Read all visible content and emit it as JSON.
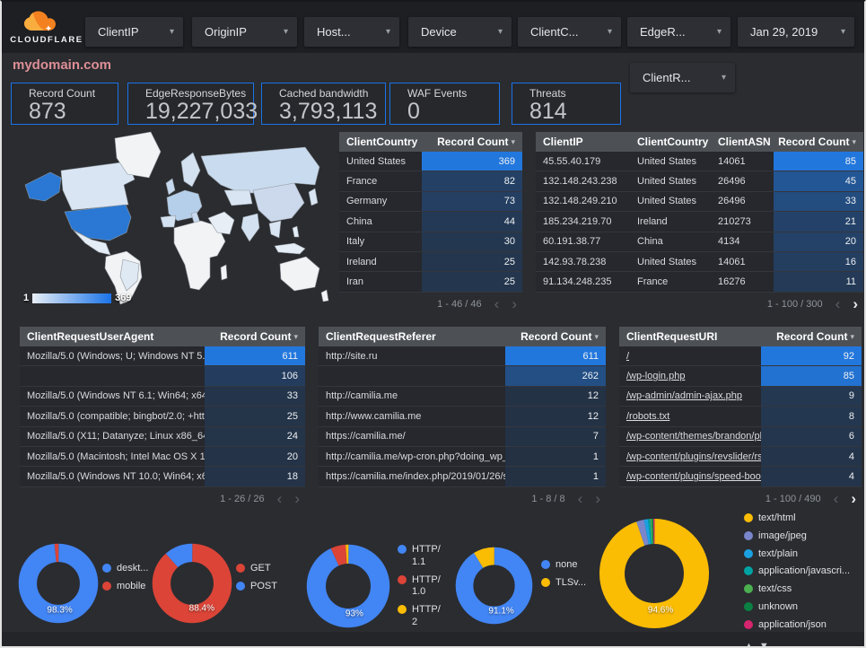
{
  "icons": {
    "caret_down": "▾",
    "chevron_left": "‹",
    "chevron_right": "›",
    "triangle_up": "▲",
    "triangle_down": "▼"
  },
  "colors": {
    "accent_blue": "#1a73e8",
    "bar_blue": "#2277dd",
    "bar_base": "#243143",
    "donut_blue": "#4285f4",
    "donut_red": "#db4437",
    "donut_yellow": "#fbbc04"
  },
  "header": {
    "logo_brand": "CLOUDFLARE",
    "filters": [
      {
        "label": "ClientIP"
      },
      {
        "label": "OriginIP"
      },
      {
        "label": "Host..."
      },
      {
        "label": "Device"
      },
      {
        "label": "ClientC..."
      },
      {
        "label": "EdgeR..."
      }
    ],
    "date_filter": {
      "label": "Jan 29, 2019"
    },
    "secondary_filter": {
      "label": "ClientR..."
    }
  },
  "page_title": "mydomain.com",
  "scorecards": [
    {
      "label": "Record Count",
      "value": "873"
    },
    {
      "label": "EdgeResponseBytes",
      "value": "19,227,033"
    },
    {
      "label": "Cached bandwidth",
      "value": "3,793,113"
    },
    {
      "label": "WAF Events",
      "value": "0"
    },
    {
      "label": "Threats",
      "value": "814"
    }
  ],
  "map": {
    "legend_min": "1",
    "legend_max": "369"
  },
  "tables": {
    "client_country": {
      "columns": [
        "ClientCountry",
        "Record Count"
      ],
      "max": 369,
      "rows": [
        {
          "cells": [
            "United States"
          ],
          "value": 369
        },
        {
          "cells": [
            "France"
          ],
          "value": 82
        },
        {
          "cells": [
            "Germany"
          ],
          "value": 73
        },
        {
          "cells": [
            "China"
          ],
          "value": 44
        },
        {
          "cells": [
            "Italy"
          ],
          "value": 30
        },
        {
          "cells": [
            "Ireland"
          ],
          "value": 25
        },
        {
          "cells": [
            "Iran"
          ],
          "value": 25
        }
      ],
      "pagination": {
        "range": "1 - 46 / 46",
        "prev": false,
        "next": false
      }
    },
    "client_ip": {
      "columns": [
        "ClientIP",
        "ClientCountry",
        "ClientASN",
        "Record Count"
      ],
      "max": 85,
      "rows": [
        {
          "cells": [
            "45.55.40.179",
            "United States",
            "14061"
          ],
          "value": 85
        },
        {
          "cells": [
            "132.148.243.238",
            "United States",
            "26496"
          ],
          "value": 45
        },
        {
          "cells": [
            "132.148.249.210",
            "United States",
            "26496"
          ],
          "value": 33
        },
        {
          "cells": [
            "185.234.219.70",
            "Ireland",
            "210273"
          ],
          "value": 21
        },
        {
          "cells": [
            "60.191.38.77",
            "China",
            "4134"
          ],
          "value": 20
        },
        {
          "cells": [
            "142.93.78.238",
            "United States",
            "14061"
          ],
          "value": 16
        },
        {
          "cells": [
            "91.134.248.235",
            "France",
            "16276"
          ],
          "value": 11
        }
      ],
      "pagination": {
        "range": "1 - 100 / 300",
        "prev": false,
        "next": true
      }
    },
    "user_agent": {
      "columns": [
        "ClientRequestUserAgent",
        "Record Count"
      ],
      "max": 611,
      "rows": [
        {
          "cells": [
            "Mozilla/5.0 (Windows; U; Windows NT 5.1; en-U..."
          ],
          "value": 611
        },
        {
          "cells": [
            ""
          ],
          "value": 106
        },
        {
          "cells": [
            "Mozilla/5.0 (Windows NT 6.1; Win64; x64; rv:64...."
          ],
          "value": 33
        },
        {
          "cells": [
            "Mozilla/5.0 (compatible; bingbot/2.0; +http://w..."
          ],
          "value": 25
        },
        {
          "cells": [
            "Mozilla/5.0 (X11; Datanyze; Linux x86_64) Appl..."
          ],
          "value": 24
        },
        {
          "cells": [
            "Mozilla/5.0 (Macintosh; Intel Mac OS X 10.11; r..."
          ],
          "value": 20
        },
        {
          "cells": [
            "Mozilla/5.0 (Windows NT 10.0; Win64; x64) App..."
          ],
          "value": 18
        }
      ],
      "pagination": {
        "range": "1 - 26 / 26",
        "prev": false,
        "next": false
      }
    },
    "referer": {
      "columns": [
        "ClientRequestReferer",
        "Record Count"
      ],
      "max": 611,
      "rows": [
        {
          "cells": [
            "http://site.ru"
          ],
          "value": 611
        },
        {
          "cells": [
            ""
          ],
          "value": 262
        },
        {
          "cells": [
            "http://camilia.me"
          ],
          "value": 12
        },
        {
          "cells": [
            "http://www.camilia.me"
          ],
          "value": 12
        },
        {
          "cells": [
            "https://camilia.me/"
          ],
          "value": 7
        },
        {
          "cells": [
            "http://camilia.me/wp-cron.php?doing_wp_cron..."
          ],
          "value": 1
        },
        {
          "cells": [
            "https://camilia.me/index.php/2019/01/26/stor..."
          ],
          "value": 1
        }
      ],
      "pagination": {
        "range": "1 - 8 / 8",
        "prev": false,
        "next": false
      }
    },
    "request_uri": {
      "columns": [
        "ClientRequestURI",
        "Record Count"
      ],
      "max": 92,
      "links": true,
      "rows": [
        {
          "cells": [
            "/"
          ],
          "value": 92
        },
        {
          "cells": [
            "/wp-login.php"
          ],
          "value": 85
        },
        {
          "cells": [
            "/wp-admin/admin-ajax.php"
          ],
          "value": 9
        },
        {
          "cells": [
            "/robots.txt"
          ],
          "value": 8
        },
        {
          "cells": [
            "/wp-content/themes/brandon/plu..."
          ],
          "value": 6
        },
        {
          "cells": [
            "/wp-content/plugins/revslider/rs-p..."
          ],
          "value": 4
        },
        {
          "cells": [
            "/wp-content/plugins/speed-booste..."
          ],
          "value": 4
        }
      ],
      "pagination": {
        "range": "1 - 100 / 490",
        "prev": false,
        "next": true
      }
    }
  },
  "donuts": [
    {
      "name": "device-type",
      "label": "98.3%",
      "segments": [
        {
          "label": "deskt...",
          "value": 98.3,
          "color": "#4285f4"
        },
        {
          "label": "mobile",
          "value": 1.7,
          "color": "#db4437"
        }
      ]
    },
    {
      "name": "request-method",
      "label": "88.4%",
      "segments": [
        {
          "label": "GET",
          "value": 88.4,
          "color": "#db4437"
        },
        {
          "label": "POST",
          "value": 11.6,
          "color": "#4285f4"
        }
      ]
    },
    {
      "name": "http-protocol",
      "label": "93%",
      "segments": [
        {
          "label": "HTTP/1.1",
          "value": 93,
          "color": "#4285f4"
        },
        {
          "label": "HTTP/1.0",
          "value": 5.9,
          "color": "#db4437"
        },
        {
          "label": "HTTP/2",
          "value": 1.1,
          "color": "#fbbc04"
        }
      ]
    },
    {
      "name": "tls-version",
      "label": "91.1%",
      "segments": [
        {
          "label": "none",
          "value": 91.1,
          "color": "#4285f4"
        },
        {
          "label": "TLSv...",
          "value": 8.9,
          "color": "#fbbc04"
        }
      ]
    },
    {
      "name": "content-type",
      "label": "94.6%",
      "legend_pager": true,
      "segments": [
        {
          "label": "text/html",
          "value": 94.6,
          "color": "#fbbc04"
        },
        {
          "label": "image/jpeg",
          "value": 2.3,
          "color": "#7986cb"
        },
        {
          "label": "text/plain",
          "value": 1.1,
          "color": "#1ba1e2"
        },
        {
          "label": "application/javascri...",
          "value": 0.7,
          "color": "#00a3a3"
        },
        {
          "label": "text/css",
          "value": 0.5,
          "color": "#4caf50"
        },
        {
          "label": "unknown",
          "value": 0.4,
          "color": "#0b8043"
        },
        {
          "label": "application/json",
          "value": 0.4,
          "color": "#d6246e"
        }
      ]
    }
  ]
}
